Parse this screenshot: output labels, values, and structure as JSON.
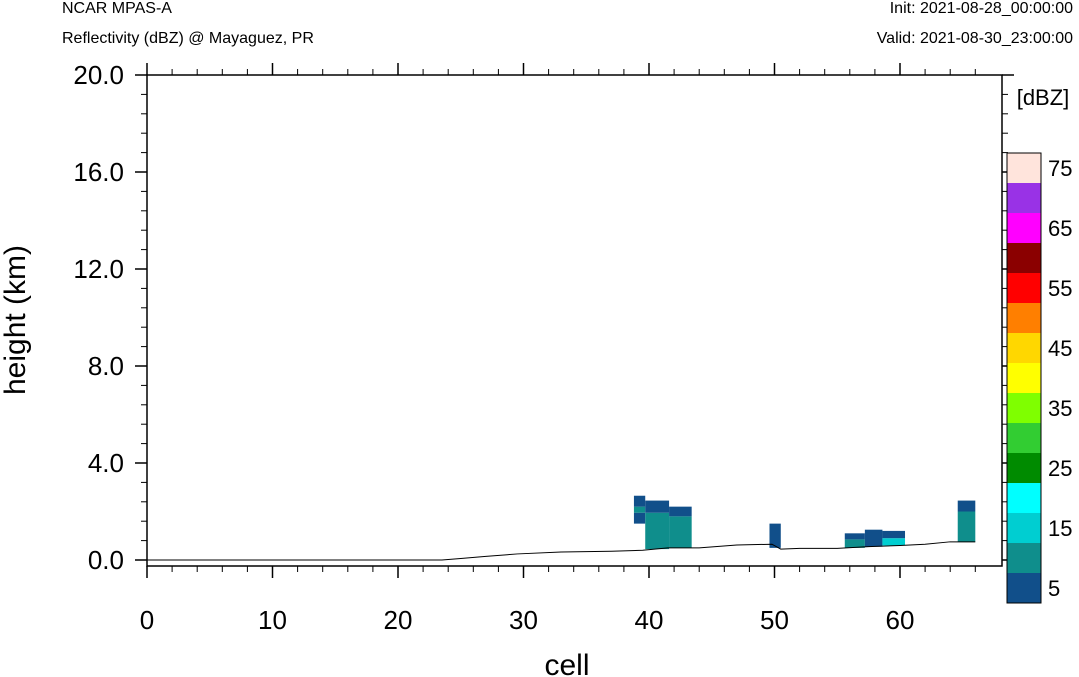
{
  "header": {
    "title": "NCAR MPAS-A",
    "subtitle": "Reflectivity (dBZ) @ Mayaguez, PR",
    "init": "Init: 2021-08-28_00:00:00",
    "valid": "Valid: 2021-08-30_23:00:00"
  },
  "chart_data": {
    "type": "heatmap",
    "title": "Reflectivity (dBZ) @ Mayaguez, PR",
    "xlabel": "cell",
    "ylabel": "height (km)",
    "xlim": [
      0,
      66
    ],
    "ylim": [
      -0.3,
      20.0
    ],
    "x_ticks": [
      0,
      10,
      20,
      30,
      40,
      50,
      60
    ],
    "x_tick_labels": [
      "0",
      "10",
      "20",
      "30",
      "40",
      "50",
      "60"
    ],
    "y_ticks": [
      0,
      4,
      8,
      12,
      16,
      20
    ],
    "y_tick_labels": [
      "0.0",
      "4.0",
      "8.0",
      "12.0",
      "16.0",
      "20.0"
    ],
    "colorbar": {
      "label": "[dBZ]",
      "tick_labels": [
        "5",
        "15",
        "25",
        "35",
        "45",
        "55",
        "65",
        "75"
      ],
      "levels": [
        5,
        10,
        15,
        20,
        25,
        30,
        35,
        40,
        45,
        50,
        55,
        60,
        65,
        70,
        75
      ],
      "colors": [
        "#114f8a",
        "#0f8e8c",
        "#00ced1",
        "#00ffff",
        "#008b00",
        "#32cd32",
        "#7fff00",
        "#ffff00",
        "#ffd700",
        "#ff7f00",
        "#ff0000",
        "#8b0000",
        "#ff00ff",
        "#9932e6",
        "#ffe4dc"
      ]
    },
    "terrain": {
      "x": [
        0,
        23.5,
        25,
        27,
        29.5,
        33,
        37,
        39.5,
        41.5,
        44,
        47,
        49.8,
        50.5,
        52,
        55,
        57.5,
        60,
        62,
        64,
        66
      ],
      "y": [
        0.0,
        0.0,
        0.06,
        0.15,
        0.25,
        0.33,
        0.36,
        0.4,
        0.5,
        0.5,
        0.62,
        0.65,
        0.45,
        0.48,
        0.48,
        0.55,
        0.6,
        0.65,
        0.75,
        0.75
      ]
    },
    "cells": [
      {
        "x0": 38.8,
        "x1": 39.7,
        "y0": 1.5,
        "y1": 1.95,
        "dbz": 5
      },
      {
        "x0": 38.8,
        "x1": 39.7,
        "y0": 1.95,
        "y1": 2.2,
        "dbz": 10
      },
      {
        "x0": 38.8,
        "x1": 39.7,
        "y0": 2.2,
        "y1": 2.65,
        "dbz": 5
      },
      {
        "x0": 39.7,
        "x1": 41.6,
        "y0": 0.45,
        "y1": 1.95,
        "dbz": 10
      },
      {
        "x0": 39.7,
        "x1": 41.6,
        "y0": 1.95,
        "y1": 2.45,
        "dbz": 5
      },
      {
        "x0": 41.6,
        "x1": 43.4,
        "y0": 0.5,
        "y1": 1.8,
        "dbz": 10
      },
      {
        "x0": 41.6,
        "x1": 43.4,
        "y0": 1.8,
        "y1": 2.2,
        "dbz": 5
      },
      {
        "x0": 49.6,
        "x1": 50.5,
        "y0": 0.5,
        "y1": 1.5,
        "dbz": 5
      },
      {
        "x0": 55.6,
        "x1": 57.2,
        "y0": 0.5,
        "y1": 0.85,
        "dbz": 10
      },
      {
        "x0": 55.6,
        "x1": 57.2,
        "y0": 0.85,
        "y1": 1.1,
        "dbz": 5
      },
      {
        "x0": 57.2,
        "x1": 58.6,
        "y0": 0.55,
        "y1": 1.25,
        "dbz": 5
      },
      {
        "x0": 58.6,
        "x1": 60.4,
        "y0": 0.6,
        "y1": 0.9,
        "dbz": 15
      },
      {
        "x0": 58.6,
        "x1": 60.4,
        "y0": 0.9,
        "y1": 1.2,
        "dbz": 5
      },
      {
        "x0": 64.6,
        "x1": 66.0,
        "y0": 0.75,
        "y1": 2.0,
        "dbz": 10
      },
      {
        "x0": 64.6,
        "x1": 66.0,
        "y0": 2.0,
        "y1": 2.45,
        "dbz": 5
      }
    ]
  }
}
